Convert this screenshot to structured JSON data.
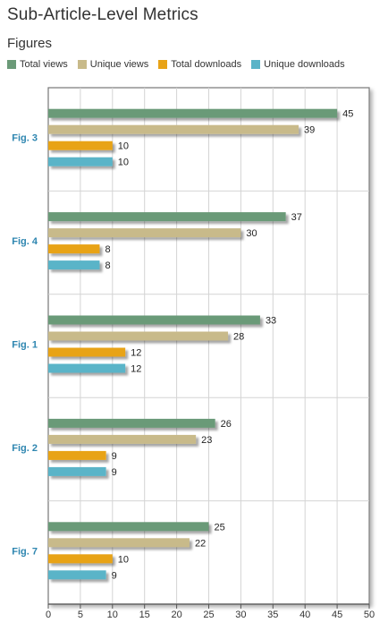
{
  "header": {
    "title": "Sub-Article-Level Metrics",
    "subtitle": "Figures"
  },
  "chart_data": {
    "type": "bar",
    "orientation": "horizontal",
    "title": "",
    "categories": [
      "Fig. 3",
      "Fig. 4",
      "Fig. 1",
      "Fig. 2",
      "Fig. 7"
    ],
    "series": [
      {
        "name": "Total views",
        "color": "#6b9a78",
        "values": [
          45,
          37,
          33,
          26,
          25
        ]
      },
      {
        "name": "Unique views",
        "color": "#c8ba8a",
        "values": [
          39,
          30,
          28,
          23,
          22
        ]
      },
      {
        "name": "Total downloads",
        "color": "#e8a317",
        "values": [
          10,
          8,
          12,
          9,
          10
        ]
      },
      {
        "name": "Unique downloads",
        "color": "#5ab4c8",
        "values": [
          10,
          8,
          12,
          9,
          9
        ]
      }
    ],
    "xlim": [
      0,
      50
    ],
    "xticks": [
      0,
      5,
      10,
      15,
      20,
      25,
      30,
      35,
      40,
      45,
      50
    ],
    "grid": true,
    "legend_position": "top",
    "data_labels": true,
    "category_label_color": "#2e86b0"
  }
}
